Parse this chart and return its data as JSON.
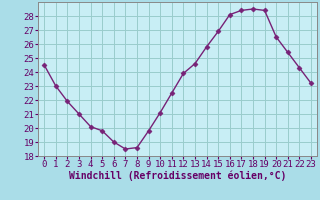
{
  "x": [
    0,
    1,
    2,
    3,
    4,
    5,
    6,
    7,
    8,
    9,
    10,
    11,
    12,
    13,
    14,
    15,
    16,
    17,
    18,
    19,
    20,
    21,
    22,
    23
  ],
  "y": [
    24.5,
    23.0,
    21.9,
    21.0,
    20.1,
    19.8,
    19.0,
    18.5,
    18.6,
    19.8,
    21.1,
    22.5,
    23.9,
    24.6,
    25.8,
    26.9,
    28.1,
    28.4,
    28.5,
    28.4,
    26.5,
    25.4,
    24.3,
    23.2
  ],
  "line_color": "#772277",
  "marker": "D",
  "markersize": 2.5,
  "linewidth": 1.0,
  "bg_color": "#aadde8",
  "plot_bg_color": "#c8eef5",
  "grid_color": "#99cccc",
  "xlabel": "Windchill (Refroidissement éolien,°C)",
  "xlabel_fontsize": 7,
  "tick_fontsize": 6.5,
  "ylim": [
    18,
    29
  ],
  "yticks": [
    18,
    19,
    20,
    21,
    22,
    23,
    24,
    25,
    26,
    27,
    28
  ],
  "xlim": [
    -0.5,
    23.5
  ],
  "xticks": [
    0,
    1,
    2,
    3,
    4,
    5,
    6,
    7,
    8,
    9,
    10,
    11,
    12,
    13,
    14,
    15,
    16,
    17,
    18,
    19,
    20,
    21,
    22,
    23
  ]
}
